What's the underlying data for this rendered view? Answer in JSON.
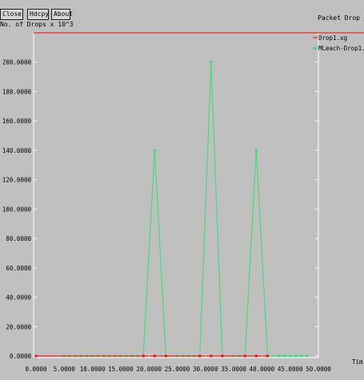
{
  "toolbar": {
    "close_label": "Close",
    "hdcpy_label": "Hdcpy",
    "about_label": "About"
  },
  "window_title": "Packet Drop",
  "chart_data": {
    "type": "line",
    "title": "Packet Drop",
    "ylabel": "No. of Drops x 10^3",
    "xlabel": "Tim",
    "xlim": [
      0,
      50
    ],
    "ylim": [
      0,
      220000
    ],
    "x_ticks": [
      0,
      5,
      10,
      15,
      20,
      25,
      30,
      35,
      40,
      45,
      50
    ],
    "x_tick_labels": [
      "0.0000",
      "5.0000",
      "10.0000",
      "15.0000",
      "20.0000",
      "25.0000",
      "30.0000",
      "35.0000",
      "40.0000",
      "45.0000",
      "50.0000"
    ],
    "y_ticks": [
      0,
      20000,
      40000,
      60000,
      80000,
      100000,
      120000,
      140000,
      160000,
      180000,
      200000
    ],
    "y_tick_labels": [
      "0.0000",
      "20.0000",
      "40.0000",
      "60.0000",
      "80.0000",
      "100.0000",
      "120.0000",
      "140.0000",
      "160.0000",
      "180.0000",
      "200.0000"
    ],
    "series": [
      {
        "name": "Drop1.xg",
        "color": "#ff0000",
        "x": [
          0,
          19,
          21,
          23,
          29,
          31,
          33,
          37,
          39,
          41
        ],
        "y": [
          0,
          0,
          0,
          0,
          0,
          0,
          0,
          0,
          0,
          0
        ]
      },
      {
        "name": "MLeach-Drop1.xg",
        "color": "#33dd77",
        "x": [
          0,
          5,
          6,
          7,
          8,
          9,
          10,
          11,
          12,
          13,
          14,
          15,
          16,
          17,
          18,
          19,
          21,
          23,
          25,
          26,
          27,
          28,
          29,
          31,
          33,
          35,
          36,
          37,
          39,
          41,
          43,
          44,
          45,
          46,
          47,
          48
        ],
        "y": [
          0,
          0,
          0,
          0,
          0,
          0,
          0,
          0,
          0,
          0,
          0,
          0,
          0,
          0,
          0,
          0,
          140000,
          0,
          0,
          0,
          0,
          0,
          0,
          200000,
          0,
          0,
          0,
          0,
          140000,
          0,
          0,
          0,
          0,
          0,
          0,
          0
        ]
      }
    ]
  }
}
